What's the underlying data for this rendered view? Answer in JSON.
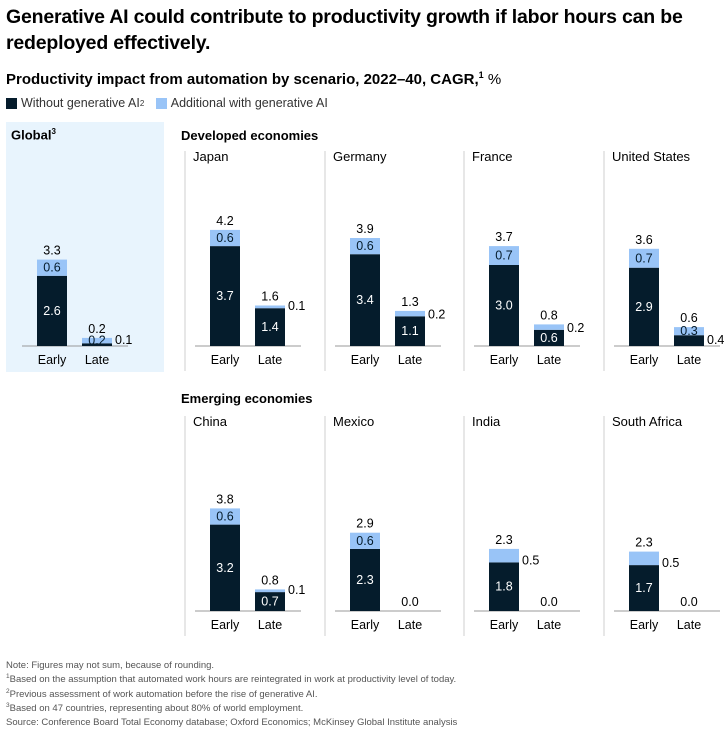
{
  "headline": "Generative AI could contribute to productivity growth if labor hours can be redeployed effectively.",
  "subtitle": {
    "text": "Productivity impact from automation by scenario, 2022–40, CAGR,",
    "sup": "1",
    "unit": "%"
  },
  "legend": [
    {
      "label": "Without generative AI",
      "sup": "2",
      "color": "#051c2c"
    },
    {
      "label": "Additional with generative AI",
      "sup": "",
      "color": "#99c4f7"
    }
  ],
  "global_panel": {
    "title": "Global",
    "sup": "3",
    "background": "#e8f4fd"
  },
  "sections": {
    "developed": "Developed economies",
    "emerging": "Emerging economies"
  },
  "colors": {
    "base": "#051c2c",
    "additional": "#99c4f7",
    "axis": "#999999"
  },
  "chart_data": [
    {
      "type": "bar",
      "stacked": true,
      "title": "Global",
      "categories": [
        "Early",
        "Late"
      ],
      "series": [
        {
          "name": "Without generative AI",
          "values": [
            2.6,
            0.1
          ]
        },
        {
          "name": "Additional with generative AI",
          "values": [
            0.6,
            0.2
          ]
        }
      ],
      "totals": [
        3.3,
        0.2
      ]
    },
    {
      "type": "bar",
      "stacked": true,
      "title": "Japan",
      "categories": [
        "Early",
        "Late"
      ],
      "series": [
        {
          "name": "Without generative AI",
          "values": [
            3.7,
            1.4
          ]
        },
        {
          "name": "Additional with generative AI",
          "values": [
            0.6,
            0.1
          ]
        }
      ],
      "totals": [
        4.2,
        1.6
      ]
    },
    {
      "type": "bar",
      "stacked": true,
      "title": "Germany",
      "categories": [
        "Early",
        "Late"
      ],
      "series": [
        {
          "name": "Without generative AI",
          "values": [
            3.4,
            1.1
          ]
        },
        {
          "name": "Additional with generative AI",
          "values": [
            0.6,
            0.2
          ]
        }
      ],
      "totals": [
        3.9,
        1.3
      ]
    },
    {
      "type": "bar",
      "stacked": true,
      "title": "France",
      "categories": [
        "Early",
        "Late"
      ],
      "series": [
        {
          "name": "Without generative AI",
          "values": [
            3.0,
            0.6
          ]
        },
        {
          "name": "Additional with generative AI",
          "values": [
            0.7,
            0.2
          ]
        }
      ],
      "totals": [
        3.7,
        0.8
      ]
    },
    {
      "type": "bar",
      "stacked": true,
      "title": "United States",
      "categories": [
        "Early",
        "Late"
      ],
      "series": [
        {
          "name": "Without generative AI",
          "values": [
            2.9,
            0.4
          ]
        },
        {
          "name": "Additional with generative AI",
          "values": [
            0.7,
            0.3
          ]
        }
      ],
      "totals": [
        3.6,
        0.6
      ]
    },
    {
      "type": "bar",
      "stacked": true,
      "title": "China",
      "categories": [
        "Early",
        "Late"
      ],
      "series": [
        {
          "name": "Without generative AI",
          "values": [
            3.2,
            0.7
          ]
        },
        {
          "name": "Additional with generative AI",
          "values": [
            0.6,
            0.1
          ]
        }
      ],
      "totals": [
        3.8,
        0.8
      ]
    },
    {
      "type": "bar",
      "stacked": true,
      "title": "Mexico",
      "categories": [
        "Early",
        "Late"
      ],
      "series": [
        {
          "name": "Without generative AI",
          "values": [
            2.3,
            0.0
          ]
        },
        {
          "name": "Additional with generative AI",
          "values": [
            0.6,
            0.0
          ]
        }
      ],
      "totals": [
        2.9,
        0.0
      ]
    },
    {
      "type": "bar",
      "stacked": true,
      "title": "India",
      "categories": [
        "Early",
        "Late"
      ],
      "series": [
        {
          "name": "Without generative AI",
          "values": [
            1.8,
            0.0
          ]
        },
        {
          "name": "Additional with generative AI",
          "values": [
            0.5,
            0.0
          ]
        }
      ],
      "totals": [
        2.3,
        0.0
      ]
    },
    {
      "type": "bar",
      "stacked": true,
      "title": "South Africa",
      "categories": [
        "Early",
        "Late"
      ],
      "series": [
        {
          "name": "Without generative AI",
          "values": [
            1.7,
            0.0
          ]
        },
        {
          "name": "Additional with generative AI",
          "values": [
            0.5,
            0.0
          ]
        }
      ],
      "totals": [
        2.3,
        0.0
      ]
    }
  ],
  "notes": [
    {
      "sup": "",
      "text": "Note: Figures may not sum, because of rounding."
    },
    {
      "sup": "1",
      "text": "Based on the assumption that automated work hours are reintegrated in work at productivity level of today."
    },
    {
      "sup": "2",
      "text": "Previous assessment of work automation before the rise of generative AI."
    },
    {
      "sup": "3",
      "text": "Based on 47 countries, representing about 80% of world employment."
    },
    {
      "sup": "",
      "text": "Source: Conference Board Total Economy database; Oxford Economics; McKinsey Global Institute analysis"
    }
  ]
}
